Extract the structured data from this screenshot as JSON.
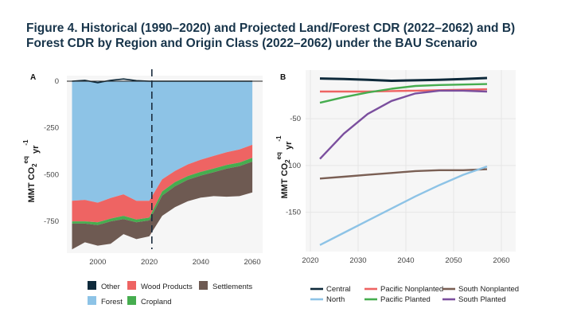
{
  "title": {
    "line1": "Figure 4.  Historical (1990–2020) and Projected Land/Forest CDR (2022–2062) and B)",
    "line2": "Forest CDR by Region and Origin Class (2022–2062) under the BAU Scenario"
  },
  "chart_data": [
    {
      "type": "area",
      "panel_label": "A",
      "ylabel": "MMT CO",
      "ylabel_sub": "2",
      "ylabel_sup": "eq",
      "ylabel_tail": " yr",
      "ylabel_exp": "-1",
      "xlim": [
        1988,
        2064
      ],
      "ylim": [
        -920,
        30
      ],
      "xticks": [
        2000,
        2020,
        2040,
        2060
      ],
      "yticks": [
        0,
        -250,
        -500,
        -750
      ],
      "divider_year": 2021,
      "x": [
        1990,
        1995,
        2000,
        2005,
        2010,
        2015,
        2020,
        2025,
        2030,
        2035,
        2040,
        2045,
        2050,
        2055,
        2060
      ],
      "series": [
        {
          "name": "Other",
          "color": "#0e2a3b",
          "values": [
            0,
            5,
            -8,
            5,
            12,
            3,
            0,
            0,
            0,
            0,
            0,
            0,
            0,
            0,
            0
          ]
        },
        {
          "name": "Forest",
          "color": "#8dc3e6",
          "values": [
            -640,
            -635,
            -650,
            -625,
            -605,
            -640,
            -640,
            -525,
            -480,
            -445,
            -420,
            -400,
            -380,
            -365,
            -340
          ]
        },
        {
          "name": "Wood Products",
          "color": "#ee6463",
          "values": [
            -110,
            -115,
            -105,
            -110,
            -115,
            -100,
            -90,
            -65,
            -60,
            -62,
            -65,
            -67,
            -68,
            -70,
            -70
          ]
        },
        {
          "name": "Cropland",
          "color": "#46ad4f",
          "values": [
            -12,
            -12,
            -15,
            -15,
            -18,
            -15,
            -15,
            -22,
            -22,
            -20,
            -20,
            -20,
            -20,
            -20,
            -20
          ]
        },
        {
          "name": "Settlements",
          "color": "#6e5a52",
          "values": [
            -138,
            -100,
            -110,
            -120,
            -80,
            -90,
            -85,
            -108,
            -112,
            -115,
            -118,
            -128,
            -150,
            -160,
            -165
          ]
        }
      ],
      "legend": [
        {
          "name": "Other",
          "color": "#0e2a3b"
        },
        {
          "name": "Wood Products",
          "color": "#ee6463"
        },
        {
          "name": "Settlements",
          "color": "#6e5a52"
        },
        {
          "name": "Forest",
          "color": "#8dc3e6"
        },
        {
          "name": "Cropland",
          "color": "#46ad4f"
        }
      ]
    },
    {
      "type": "line",
      "panel_label": "B",
      "ylabel": "MMT CO",
      "ylabel_sub": "2",
      "ylabel_sup": "eq",
      "ylabel_tail": " yr",
      "ylabel_exp": "-1",
      "xlim": [
        2019,
        2063
      ],
      "ylim": [
        -192,
        2
      ],
      "xticks": [
        2020,
        2030,
        2040,
        2050,
        2060
      ],
      "yticks": [
        -50,
        -100,
        -150
      ],
      "x": [
        2022,
        2027,
        2032,
        2037,
        2042,
        2047,
        2052,
        2057
      ],
      "series": [
        {
          "name": "Central",
          "color": "#0e2a3b",
          "values": [
            -7,
            -7.5,
            -8.5,
            -9.5,
            -9,
            -8.5,
            -7.5,
            -6.5
          ]
        },
        {
          "name": "Pacific Nonplanted",
          "color": "#ee6463",
          "values": [
            -21,
            -21,
            -21,
            -20.5,
            -20,
            -19.5,
            -19,
            -18.5
          ]
        },
        {
          "name": "South Nonplanted",
          "color": "#7a5f54",
          "values": [
            -114,
            -112,
            -110,
            -108,
            -106,
            -105,
            -105,
            -104
          ]
        },
        {
          "name": "North",
          "color": "#8dc3e6",
          "values": [
            -185,
            -172,
            -159,
            -146,
            -133,
            -121,
            -110,
            -101
          ]
        },
        {
          "name": "Pacific Planted",
          "color": "#46ad4f",
          "values": [
            -33,
            -27,
            -22,
            -18,
            -15,
            -14,
            -13.5,
            -13
          ]
        },
        {
          "name": "South Planted",
          "color": "#7b4f9e",
          "values": [
            -93,
            -66,
            -45,
            -31,
            -23,
            -20,
            -20,
            -21
          ]
        }
      ],
      "legend": [
        {
          "name": "Central",
          "color": "#0e2a3b"
        },
        {
          "name": "Pacific Nonplanted",
          "color": "#ee6463"
        },
        {
          "name": "South Nonplanted",
          "color": "#7a5f54"
        },
        {
          "name": "North",
          "color": "#8dc3e6"
        },
        {
          "name": "Pacific Planted",
          "color": "#46ad4f"
        },
        {
          "name": "South Planted",
          "color": "#7b4f9e"
        }
      ]
    }
  ]
}
